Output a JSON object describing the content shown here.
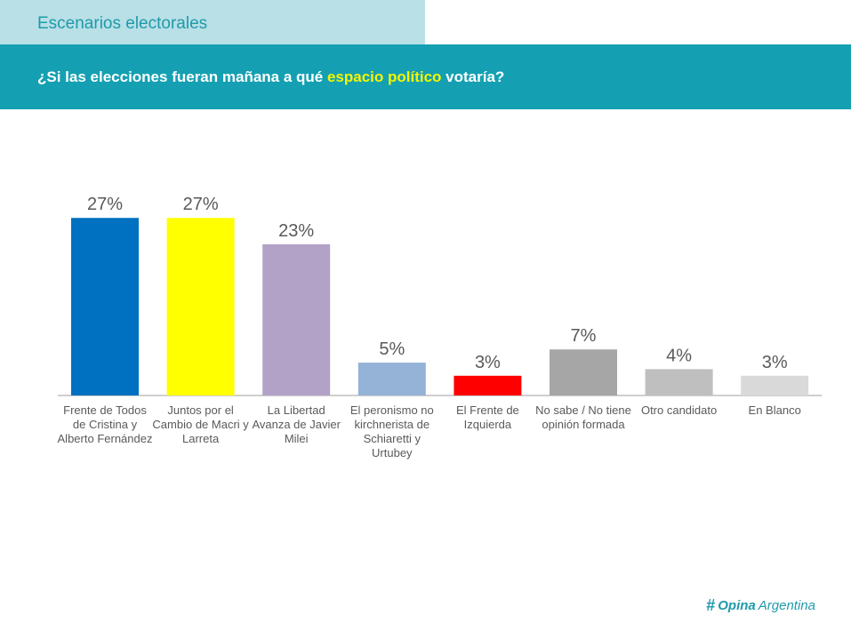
{
  "header": {
    "section_title": "Escenarios electorales",
    "question_before": "¿Si las elecciones fueran mañana a qué ",
    "question_highlight": "espacio político",
    "question_after": " votaría?",
    "highlight_color": "#f5f500"
  },
  "chart_data": {
    "type": "bar",
    "title": "",
    "xlabel": "",
    "ylabel": "",
    "ylim": [
      0,
      30
    ],
    "grid": false,
    "categories": [
      "Frente de Todos de Cristina y Alberto Fernández",
      "Juntos por el Cambio de Macri y Larreta",
      "La Libertad Avanza de Javier Milei",
      "El peronismo no kirchnerista de Schiaretti y Urtubey",
      "El Frente de Izquierda",
      "No sabe / No tiene opinión formada",
      "Otro candidato",
      "En Blanco"
    ],
    "values": [
      27,
      27,
      23,
      5,
      3,
      7,
      4,
      3
    ],
    "data_labels": [
      "27%",
      "27%",
      "23%",
      "5%",
      "3%",
      "7%",
      "4%",
      "3%"
    ],
    "colors": [
      "#0070c0",
      "#ffff00",
      "#b3a2c7",
      "#95b3d7",
      "#ff0000",
      "#a6a6a6",
      "#bfbfbf",
      "#d9d9d9"
    ]
  },
  "footer": {
    "logo_icon": "hashtag-icon",
    "logo_word1": "Opina",
    "logo_word2": "Argentina"
  }
}
